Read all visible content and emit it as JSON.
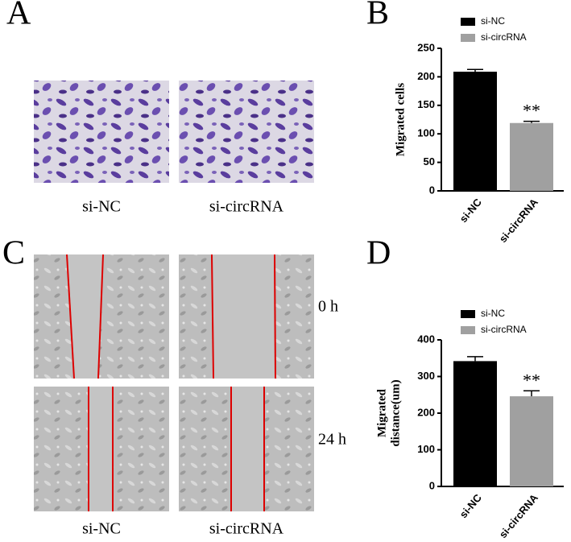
{
  "panel_labels": [
    "A",
    "B",
    "C",
    "D"
  ],
  "transwell": {
    "labels": [
      "si-NC",
      "si-circRNA"
    ]
  },
  "wound": {
    "labels": [
      "si-NC",
      "si-circRNA"
    ],
    "times": [
      "0 h",
      "24 h"
    ]
  },
  "chart_data": [
    {
      "type": "bar",
      "ylabel": [
        "Migrated cells"
      ],
      "categories": [
        "si-NC",
        "si-circRNA"
      ],
      "values": [
        209,
        119
      ],
      "errors": [
        4,
        3
      ],
      "colors": [
        "#000000",
        "#a0a0a0"
      ],
      "significance": [
        null,
        "**"
      ],
      "ylim": [
        0,
        250
      ],
      "yticks": [
        0,
        50,
        100,
        150,
        200,
        250
      ]
    },
    {
      "type": "bar",
      "ylabel": [
        "Migrated",
        "distance(um)"
      ],
      "categories": [
        "si-NC",
        "si-circRNA"
      ],
      "values": [
        342,
        246
      ],
      "errors": [
        12,
        15
      ],
      "colors": [
        "#000000",
        "#a0a0a0"
      ],
      "significance": [
        null,
        "**"
      ],
      "ylim": [
        0,
        400
      ],
      "yticks": [
        0,
        100,
        200,
        300,
        400
      ]
    }
  ]
}
